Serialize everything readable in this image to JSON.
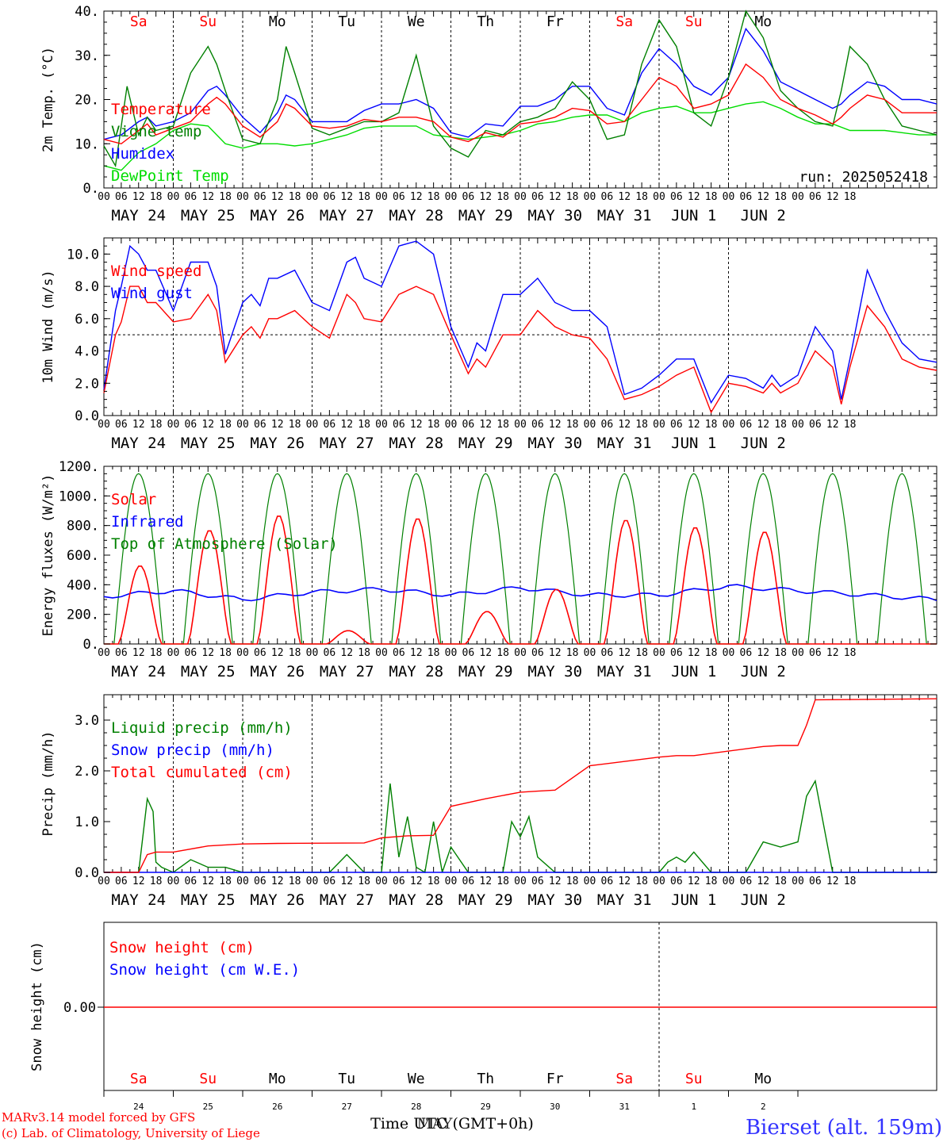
{
  "colors": {
    "red": "#ff0000",
    "blue": "#0000ff",
    "green": "#008000",
    "lightgreen": "#00dd00",
    "black": "#000000"
  },
  "days": {
    "names": [
      "Sa",
      "Su",
      "Mo",
      "Tu",
      "We",
      "Th",
      "Fr",
      "Sa",
      "Su",
      "Mo"
    ],
    "colors": [
      "red",
      "red",
      "black",
      "black",
      "black",
      "black",
      "black",
      "red",
      "red",
      "black"
    ],
    "date_labels": [
      "MAY 24",
      "MAY 25",
      "MAY 26",
      "MAY 27",
      "MAY 28",
      "MAY 29",
      "MAY 30",
      "MAY 31",
      "JUN  1",
      "JUN  2"
    ],
    "hour_ticks": [
      "00",
      "06",
      "12",
      "18"
    ],
    "day_numbers": [
      "24",
      "25",
      "26",
      "27",
      "28",
      "29",
      "30",
      "31",
      "1",
      "2"
    ]
  },
  "chart_data": [
    {
      "type": "line",
      "id": "temp",
      "ylabel": "2m Temp. (°C)",
      "ylim": [
        0,
        40
      ],
      "yticks": [
        "0.",
        "10.",
        "20.",
        "30.",
        "40."
      ],
      "annotation": "run: 2025052418",
      "x_unit": "hours from MAY 24 00 UTC",
      "series": [
        {
          "name": "Temperature",
          "color": "red",
          "x": [
            0,
            6,
            12,
            15,
            18,
            24,
            30,
            36,
            39,
            42,
            48,
            54,
            60,
            63,
            66,
            72,
            78,
            84,
            90,
            96,
            102,
            108,
            114,
            120,
            126,
            132,
            138,
            144,
            150,
            156,
            162,
            168,
            174,
            180,
            186,
            192,
            198,
            204,
            210,
            216,
            222,
            228,
            234,
            240,
            246,
            252,
            255,
            258,
            264,
            270,
            276,
            282,
            288
          ],
          "values": [
            11,
            10,
            13,
            14.5,
            12,
            13.5,
            15,
            19,
            20.5,
            19,
            14,
            11.5,
            15,
            19,
            18,
            14,
            13.5,
            14,
            15.5,
            15,
            16,
            16,
            15,
            11.5,
            10.5,
            12.5,
            11.5,
            14.5,
            15,
            16,
            18,
            17.5,
            14.5,
            15,
            20,
            25,
            23,
            18,
            19,
            21,
            28,
            25,
            20,
            18,
            16.5,
            14.5,
            16,
            18,
            21,
            20,
            17,
            17,
            17
          ]
        },
        {
          "name": "Vigne temp",
          "color": "green",
          "x": [
            0,
            4,
            6,
            8,
            12,
            15,
            18,
            24,
            30,
            36,
            39,
            42,
            48,
            54,
            60,
            63,
            66,
            72,
            78,
            84,
            90,
            96,
            102,
            108,
            114,
            120,
            126,
            132,
            138,
            144,
            150,
            156,
            162,
            168,
            174,
            180,
            186,
            192,
            198,
            204,
            210,
            216,
            222,
            228,
            234,
            240,
            246,
            252,
            255,
            258,
            264,
            270,
            276,
            282,
            288
          ],
          "values": [
            9.5,
            5,
            14,
            23,
            12,
            16,
            13,
            14,
            26,
            32,
            28,
            22,
            11,
            10,
            20,
            32,
            26,
            13.5,
            12,
            13.5,
            15,
            15,
            17,
            30,
            14,
            9,
            7,
            13,
            12,
            15,
            16,
            18,
            24,
            20,
            11,
            12,
            28,
            38,
            32,
            17,
            14,
            25,
            40,
            34,
            22,
            18,
            15,
            14,
            22,
            32,
            28,
            20,
            14,
            13,
            12
          ]
        },
        {
          "name": "Humidex",
          "color": "blue",
          "x": [
            0,
            6,
            12,
            15,
            18,
            24,
            30,
            36,
            39,
            42,
            48,
            54,
            60,
            63,
            66,
            72,
            78,
            84,
            90,
            96,
            102,
            108,
            114,
            120,
            126,
            132,
            138,
            144,
            150,
            156,
            162,
            168,
            174,
            180,
            186,
            192,
            198,
            204,
            210,
            216,
            222,
            228,
            234,
            240,
            246,
            252,
            255,
            258,
            264,
            270,
            276,
            282,
            288
          ],
          "values": [
            11,
            12,
            15,
            16,
            14,
            15,
            17,
            22,
            23,
            21,
            16,
            12.5,
            17,
            21,
            20,
            15,
            15,
            15,
            17.5,
            19,
            19,
            20,
            18,
            12.5,
            11.5,
            14.5,
            14,
            18.5,
            18.5,
            20,
            23,
            23,
            18,
            16.5,
            26,
            31.5,
            28,
            23,
            21,
            25,
            36,
            31,
            24,
            22,
            20,
            18,
            19,
            21,
            24,
            23,
            20,
            20,
            19
          ]
        },
        {
          "name": "DewPoint Temp",
          "color": "lightgreen",
          "x": [
            0,
            6,
            12,
            18,
            24,
            30,
            36,
            42,
            48,
            54,
            60,
            66,
            72,
            78,
            84,
            90,
            96,
            102,
            108,
            114,
            120,
            126,
            132,
            138,
            144,
            150,
            156,
            162,
            168,
            174,
            180,
            186,
            192,
            198,
            204,
            210,
            216,
            222,
            228,
            234,
            240,
            246,
            252,
            258,
            264,
            270,
            276,
            282,
            288
          ],
          "values": [
            5,
            4,
            8,
            10,
            13,
            14.5,
            14,
            10,
            9,
            10,
            10,
            9.5,
            10,
            11,
            12,
            13.5,
            14,
            14,
            14,
            12,
            11.5,
            11,
            11.5,
            12,
            13,
            14.5,
            15,
            16,
            16.5,
            16.5,
            15,
            17,
            18,
            18.5,
            17,
            17,
            18,
            19,
            19.5,
            18,
            16,
            14.5,
            14.5,
            13,
            13,
            13,
            12.5,
            12,
            12
          ]
        }
      ]
    },
    {
      "type": "line",
      "id": "wind",
      "ylabel": "10m Wind (m/s)",
      "ylim": [
        0,
        11
      ],
      "yticks": [
        "0.0",
        "2.0",
        "4.0",
        "6.0",
        "8.0",
        "10.0"
      ],
      "reference_line": 5,
      "series": [
        {
          "name": "Wind speed",
          "color": "red",
          "x": [
            0,
            4,
            6,
            9,
            12,
            15,
            18,
            24,
            30,
            36,
            39,
            42,
            48,
            51,
            54,
            57,
            60,
            66,
            72,
            78,
            84,
            87,
            90,
            96,
            102,
            108,
            114,
            120,
            126,
            129,
            132,
            138,
            144,
            150,
            156,
            162,
            168,
            174,
            180,
            186,
            192,
            198,
            204,
            210,
            216,
            222,
            228,
            231,
            234,
            240,
            246,
            252,
            255,
            258,
            264,
            270,
            276,
            282,
            288
          ],
          "values": [
            1.4,
            5,
            5.8,
            8,
            8,
            7,
            7,
            5.8,
            6,
            7.5,
            6.5,
            3.3,
            5,
            5.5,
            4.8,
            6,
            6,
            6.5,
            5.5,
            4.8,
            7.5,
            7,
            6,
            5.8,
            7.5,
            8,
            7.5,
            5,
            2.6,
            3.5,
            3,
            5,
            5,
            6.5,
            5.5,
            5,
            4.8,
            3.5,
            1,
            1.3,
            1.8,
            2.5,
            3,
            0.2,
            2,
            1.8,
            1.4,
            2,
            1.4,
            2,
            4,
            3,
            0.7,
            3,
            6.8,
            5.5,
            3.5,
            3,
            2.8
          ]
        },
        {
          "name": "Wind gust",
          "color": "blue",
          "x": [
            0,
            4,
            6,
            9,
            12,
            15,
            18,
            24,
            30,
            36,
            39,
            42,
            48,
            51,
            54,
            57,
            60,
            66,
            72,
            78,
            84,
            87,
            90,
            96,
            102,
            108,
            114,
            120,
            126,
            129,
            132,
            138,
            144,
            150,
            156,
            162,
            168,
            174,
            180,
            186,
            192,
            198,
            204,
            210,
            216,
            222,
            228,
            231,
            234,
            240,
            246,
            252,
            255,
            258,
            264,
            270,
            276,
            282,
            288
          ],
          "values": [
            1.6,
            6.5,
            8,
            10.5,
            10,
            9,
            9,
            6.5,
            9.5,
            9.5,
            8,
            3.8,
            7,
            7.5,
            6.8,
            8.5,
            8.5,
            9,
            7,
            6.5,
            9.5,
            9.8,
            8.5,
            8,
            10.5,
            10.8,
            10,
            5.5,
            3,
            4.5,
            4,
            7.5,
            7.5,
            8.5,
            7,
            6.5,
            6.5,
            5.5,
            1.3,
            1.7,
            2.5,
            3.5,
            3.5,
            0.8,
            2.5,
            2.3,
            1.7,
            2.5,
            1.8,
            2.5,
            5.5,
            4,
            1,
            3.5,
            9,
            6.5,
            4.5,
            3.5,
            3.3
          ]
        }
      ]
    },
    {
      "type": "line",
      "id": "energy",
      "ylabel": "Energy fluxes (W/m²)",
      "ylim": [
        0,
        1200
      ],
      "yticks": [
        "0.",
        "200.",
        "400.",
        "600.",
        "800.",
        "1000.",
        "1200."
      ],
      "series": [
        {
          "name": "Solar",
          "color": "red",
          "kind": "solar"
        },
        {
          "name": "Infrared",
          "color": "blue",
          "kind": "ir"
        },
        {
          "name": "Top of Atmosphere (Solar)",
          "color": "green",
          "kind": "toa"
        }
      ],
      "solar_daily_peaks": [
        530,
        770,
        870,
        90,
        850,
        220,
        370,
        840,
        790,
        760
      ],
      "infrared_values": [
        320,
        360,
        300,
        350,
        370,
        330,
        380,
        330,
        330,
        390,
        360
      ],
      "toa_peak": 1150
    },
    {
      "type": "line",
      "id": "precip",
      "ylabel": "Precip (mm/h)",
      "ylim": [
        0,
        3.5
      ],
      "yticks": [
        "0.0",
        "1.0",
        "2.0",
        "3.0"
      ],
      "series": [
        {
          "name": "Liquid precip (mm/h)",
          "color": "green",
          "x": [
            0,
            12,
            15,
            17,
            18,
            20,
            24,
            30,
            36,
            42,
            48,
            60,
            78,
            84,
            90,
            96,
            99,
            102,
            105,
            108,
            111,
            114,
            117,
            120,
            126,
            138,
            141,
            144,
            147,
            150,
            156,
            180,
            192,
            195,
            198,
            201,
            204,
            210,
            222,
            228,
            234,
            240,
            243,
            246,
            252,
            255,
            258,
            264,
            288
          ],
          "values": [
            0,
            0,
            1.45,
            1.2,
            0.2,
            0.1,
            0,
            0.25,
            0.1,
            0.1,
            0,
            0,
            0,
            0.35,
            0,
            0,
            1.75,
            0.3,
            1.1,
            0.1,
            0,
            1,
            0,
            0.5,
            0,
            0,
            1,
            0.7,
            1.1,
            0.3,
            0,
            0,
            0,
            0.2,
            0.3,
            0.2,
            0.4,
            0,
            0,
            0.6,
            0.5,
            0.6,
            1.5,
            1.8,
            0,
            0,
            0,
            0,
            0
          ]
        },
        {
          "name": "Snow precip (mm/h)",
          "color": "blue",
          "x": [
            0,
            288
          ],
          "values": [
            0,
            0
          ]
        },
        {
          "name": "Total cumulated (cm)",
          "color": "red",
          "x": [
            0,
            12,
            15,
            18,
            24,
            36,
            48,
            60,
            90,
            96,
            105,
            114,
            120,
            132,
            144,
            150,
            156,
            168,
            192,
            198,
            204,
            228,
            234,
            240,
            243,
            246,
            288
          ],
          "values": [
            0,
            0,
            0.35,
            0.4,
            0.4,
            0.52,
            0.56,
            0.57,
            0.58,
            0.68,
            0.72,
            0.73,
            1.3,
            1.45,
            1.58,
            1.6,
            1.62,
            2.1,
            2.27,
            2.3,
            2.3,
            2.48,
            2.5,
            2.5,
            2.9,
            3.4,
            3.42
          ]
        }
      ]
    },
    {
      "type": "line",
      "id": "snow",
      "ylabel": "Snow height (cm)",
      "yticks": [
        "0.00"
      ],
      "series": [
        {
          "name": "Snow height (cm)",
          "color": "red",
          "x": [
            0,
            288
          ],
          "values": [
            0,
            0
          ]
        },
        {
          "name": "Snow height (cm W.E.)",
          "color": "blue",
          "x": [
            0,
            288
          ],
          "values": [
            0,
            0
          ]
        }
      ]
    }
  ],
  "footer": {
    "model_line": "MARv3.14 model forced by GFS",
    "lab_line": "(c) Lab. of Climatology, University of Liege",
    "xaxis_title": "Time UTC (GMT+0h)",
    "xaxis_month": "MAY",
    "station": "Bierset (alt. 159m)"
  }
}
